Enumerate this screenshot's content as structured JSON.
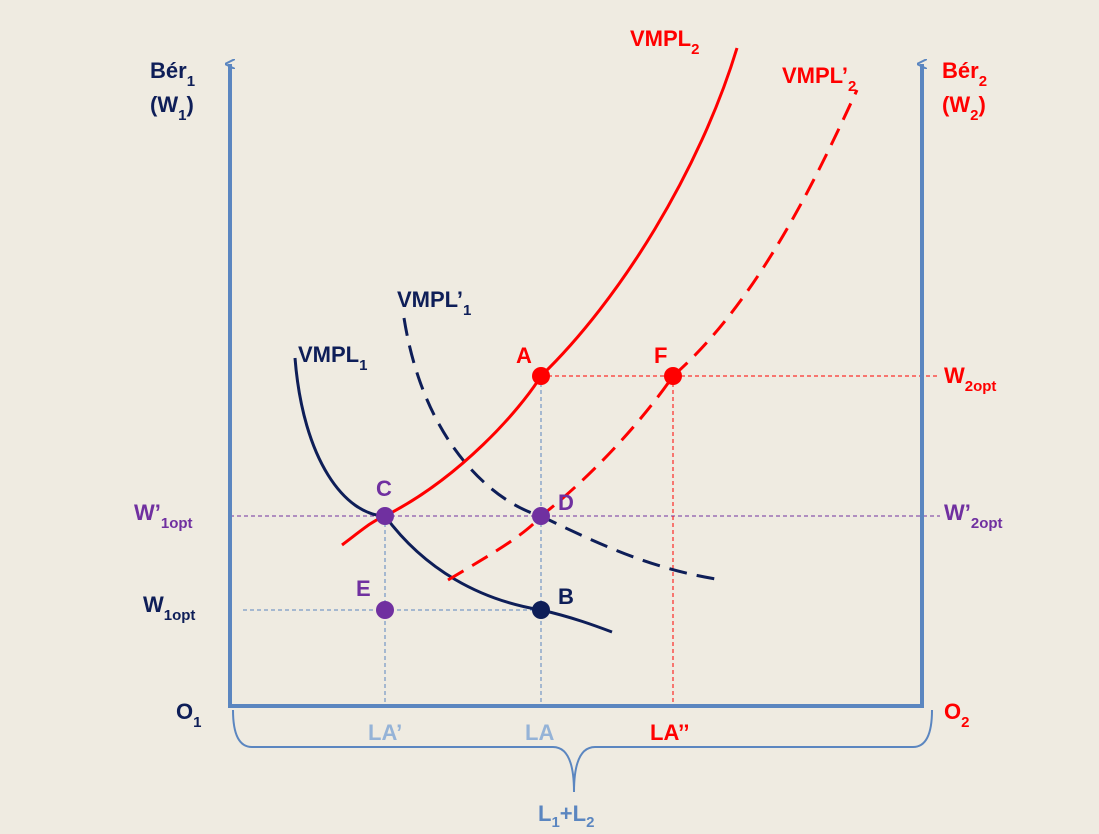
{
  "colors": {
    "background": "#efebe1",
    "axis": "#5b86c0",
    "navy": "#0e1e58",
    "red": "#ff0000",
    "purple": "#7030a0",
    "light_blue": "#95b3d7"
  },
  "left_axis": {
    "label_line1": "Bér",
    "label_line1_sub": "1",
    "label_line2": "(W",
    "label_line2_sub": "1",
    "label_line2_end": ")"
  },
  "right_axis": {
    "label_line1": "Bér",
    "label_line1_sub": "2",
    "label_line2": "(W",
    "label_line2_sub": "2",
    "label_line2_end": ")"
  },
  "origins": {
    "left": {
      "main": "O",
      "sub": "1"
    },
    "right": {
      "main": "O",
      "sub": "2"
    }
  },
  "curves": {
    "vmpl1": {
      "main": "VMPL",
      "sub": "1"
    },
    "vmpl1_prime": {
      "main": "VMPL",
      "prime": "’",
      "sub": "1"
    },
    "vmpl2": {
      "main": "VMPL",
      "sub": "2"
    },
    "vmpl2_prime": {
      "main": "VMPL",
      "prime": "’",
      "sub": "2"
    }
  },
  "points": {
    "A": "A",
    "B": "B",
    "C": "C",
    "D": "D",
    "E": "E",
    "F": "F"
  },
  "wage_levels": {
    "w1opt": {
      "main": "W",
      "sub": "1opt"
    },
    "w1opt_prime": {
      "main": "W’",
      "sub": "1opt"
    },
    "w2opt": {
      "main": "W",
      "sub": "2opt"
    },
    "w2opt_prime": {
      "main": "W’",
      "sub": "2opt"
    }
  },
  "labor_marks": {
    "la_prime": "LA’",
    "la": "LA",
    "la_double_prime": "LA’’"
  },
  "total_labor": {
    "a": "L",
    "a_sub": "1",
    "plus": "+",
    "b": "L",
    "b_sub": "2"
  }
}
